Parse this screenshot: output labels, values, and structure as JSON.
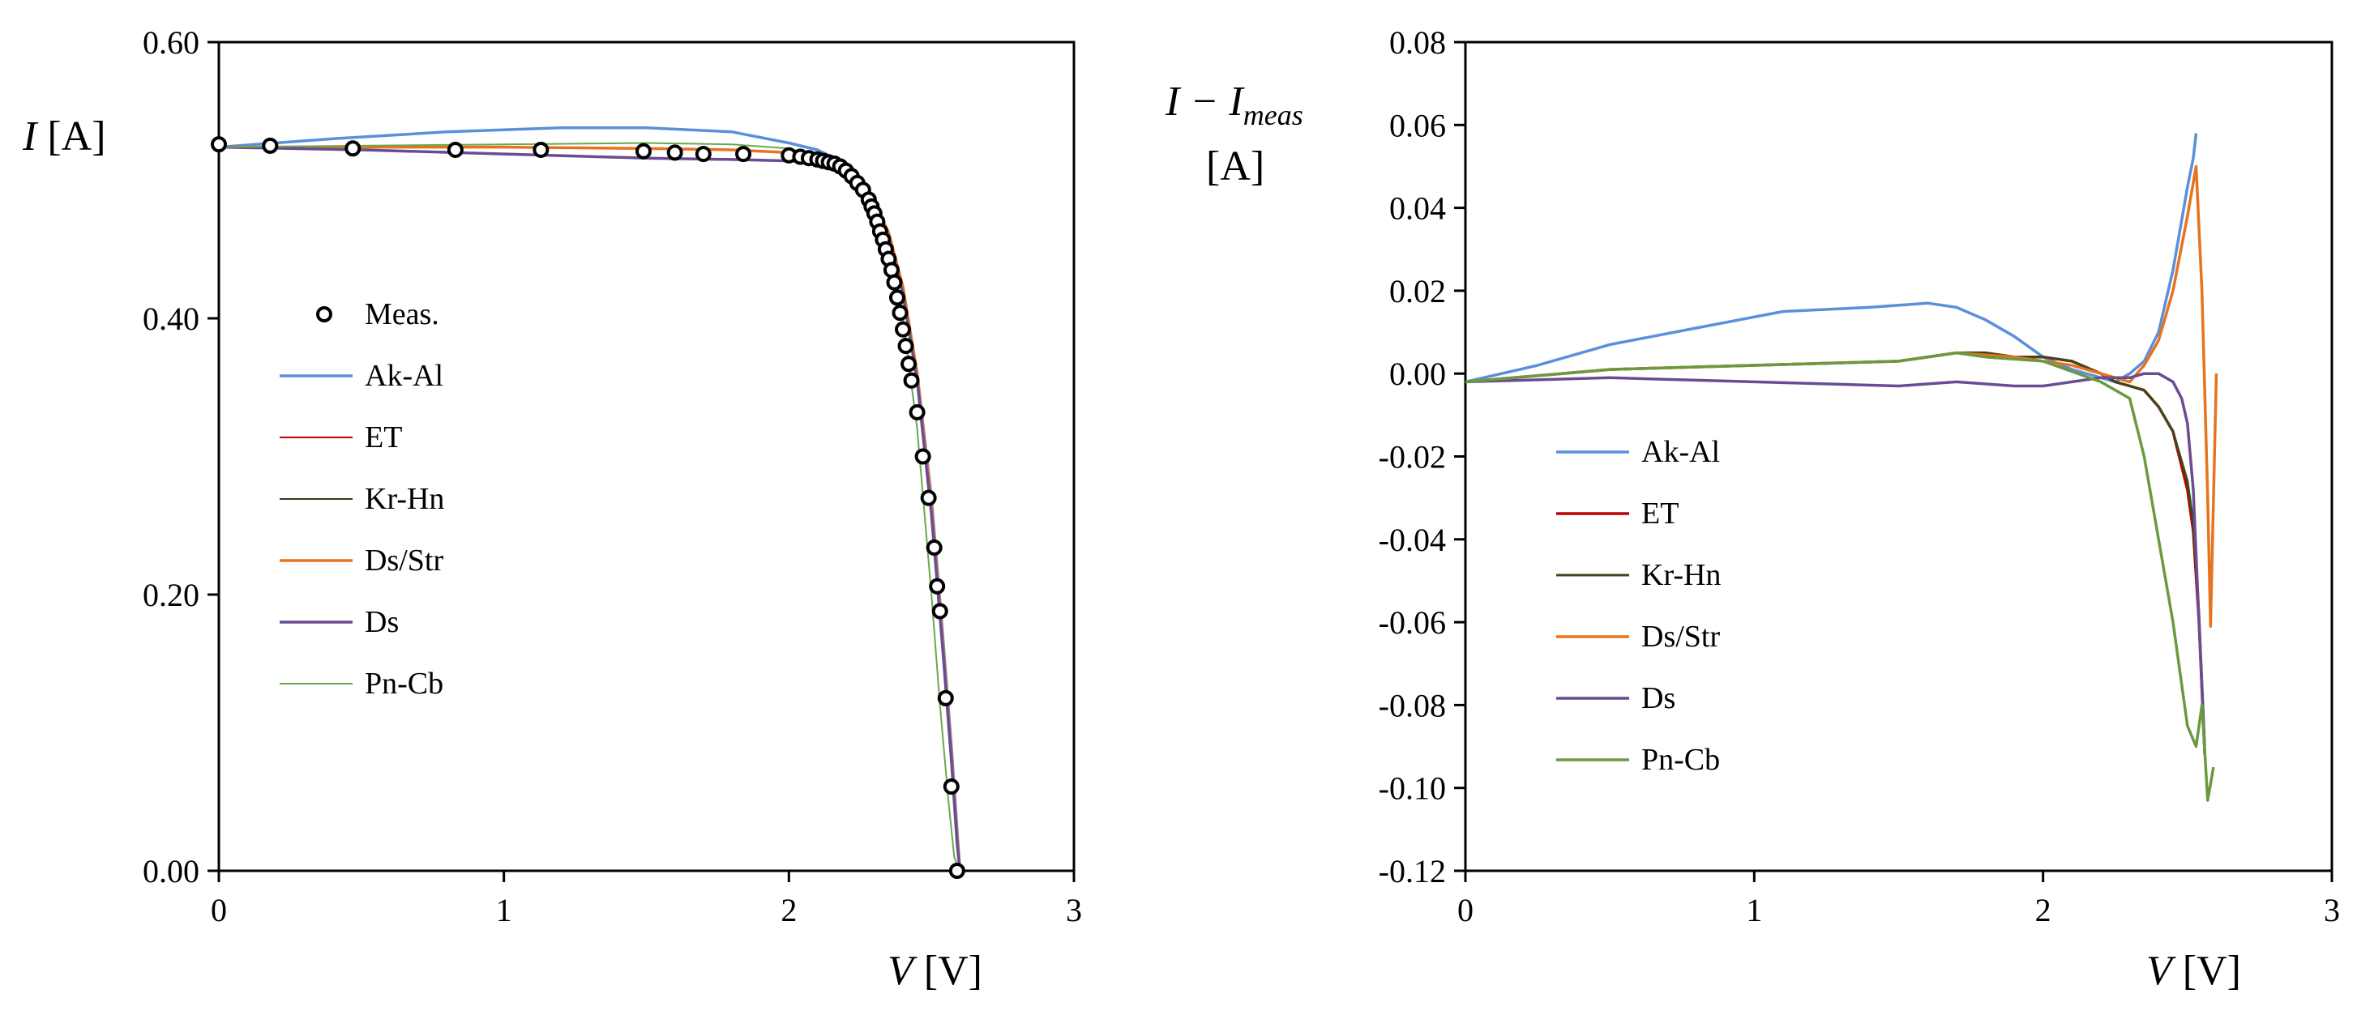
{
  "chart_data": [
    {
      "type": "line",
      "id": "iv",
      "xlabel": {
        "var": "V",
        "unit": "[V]"
      },
      "ylabel": {
        "var": "I",
        "unit": "[A]"
      },
      "xlim": [
        0,
        3
      ],
      "ylim": [
        0,
        0.6
      ],
      "xticks": [
        0,
        1,
        2,
        3
      ],
      "yticks": [
        0,
        0.2,
        0.4,
        0.6
      ],
      "ytick_decimals": 2,
      "grid": false,
      "legend_position": "left-middle",
      "markers": {
        "name": "Meas.",
        "color": "#000000",
        "x": [
          0,
          0.18,
          0.47,
          0.83,
          1.13,
          1.49,
          1.6,
          1.7,
          1.84,
          2.0,
          2.04,
          2.07,
          2.1,
          2.12,
          2.14,
          2.16,
          2.18,
          2.2,
          2.22,
          2.24,
          2.26,
          2.28,
          2.29,
          2.3,
          2.31,
          2.32,
          2.33,
          2.34,
          2.35,
          2.36,
          2.37,
          2.38,
          2.39,
          2.4,
          2.41,
          2.42,
          2.43,
          2.45,
          2.47,
          2.49,
          2.51,
          2.52,
          2.53,
          2.55,
          2.57,
          2.59
        ],
        "y": [
          0.526,
          0.525,
          0.523,
          0.522,
          0.522,
          0.521,
          0.52,
          0.519,
          0.519,
          0.518,
          0.517,
          0.516,
          0.515,
          0.514,
          0.513,
          0.512,
          0.51,
          0.507,
          0.503,
          0.498,
          0.493,
          0.486,
          0.481,
          0.476,
          0.47,
          0.463,
          0.457,
          0.45,
          0.443,
          0.435,
          0.426,
          0.415,
          0.404,
          0.392,
          0.38,
          0.367,
          0.355,
          0.332,
          0.3,
          0.27,
          0.234,
          0.206,
          0.188,
          0.125,
          0.061,
          0.0
        ]
      },
      "series": [
        {
          "name": "Ak-Al",
          "color": "#5b8fd9",
          "width": 3.5,
          "x": [
            0,
            0.4,
            0.8,
            1.2,
            1.5,
            1.8,
            2.0,
            2.1,
            2.2,
            2.3,
            2.35,
            2.4,
            2.45,
            2.5,
            2.54,
            2.57,
            2.59,
            2.6
          ],
          "y": [
            0.524,
            0.53,
            0.535,
            0.538,
            0.538,
            0.535,
            0.527,
            0.522,
            0.512,
            0.485,
            0.46,
            0.42,
            0.36,
            0.27,
            0.17,
            0.09,
            0.03,
            0.0
          ]
        },
        {
          "name": "ET",
          "color": "#c00000",
          "width": 2,
          "x": [
            0,
            0.5,
            1.0,
            1.5,
            1.8,
            2.0,
            2.1,
            2.2,
            2.3,
            2.35,
            2.4,
            2.45,
            2.5,
            2.54,
            2.57,
            2.59,
            2.6
          ],
          "y": [
            0.524,
            0.524,
            0.524,
            0.523,
            0.522,
            0.52,
            0.516,
            0.507,
            0.483,
            0.46,
            0.42,
            0.355,
            0.26,
            0.16,
            0.08,
            0.02,
            0.0
          ]
        },
        {
          "name": "Kr-Hn",
          "color": "#3a3a1a",
          "width": 2,
          "x": [
            0,
            0.5,
            1.0,
            1.5,
            1.8,
            2.0,
            2.1,
            2.2,
            2.3,
            2.35,
            2.4,
            2.45,
            2.5,
            2.54,
            2.57,
            2.59,
            2.6
          ],
          "y": [
            0.524,
            0.524,
            0.524,
            0.523,
            0.522,
            0.52,
            0.516,
            0.507,
            0.482,
            0.458,
            0.418,
            0.352,
            0.256,
            0.156,
            0.076,
            0.018,
            0.0
          ]
        },
        {
          "name": "Ds/Str",
          "color": "#e8731e",
          "width": 3.5,
          "x": [
            0,
            0.5,
            1.0,
            1.5,
            1.8,
            2.0,
            2.1,
            2.2,
            2.3,
            2.35,
            2.4,
            2.45,
            2.5,
            2.54,
            2.57,
            2.59,
            2.6
          ],
          "y": [
            0.524,
            0.524,
            0.524,
            0.523,
            0.522,
            0.52,
            0.516,
            0.507,
            0.484,
            0.462,
            0.423,
            0.36,
            0.265,
            0.165,
            0.085,
            0.025,
            0.0
          ]
        },
        {
          "name": "Ds",
          "color": "#6a4c93",
          "width": 3.5,
          "x": [
            0,
            0.5,
            1.0,
            1.5,
            1.8,
            2.0,
            2.1,
            2.2,
            2.3,
            2.35,
            2.4,
            2.45,
            2.5,
            2.54,
            2.57,
            2.59,
            2.6
          ],
          "y": [
            0.524,
            0.522,
            0.519,
            0.516,
            0.515,
            0.514,
            0.513,
            0.505,
            0.481,
            0.458,
            0.418,
            0.355,
            0.258,
            0.16,
            0.08,
            0.02,
            0.0
          ]
        },
        {
          "name": "Pn-Cb",
          "color": "#6aa84f",
          "width": 2,
          "x": [
            0,
            0.5,
            1.0,
            1.5,
            1.8,
            2.0,
            2.1,
            2.2,
            2.3,
            2.35,
            2.4,
            2.45,
            2.5,
            2.53,
            2.56,
            2.58,
            2.6
          ],
          "y": [
            0.524,
            0.525,
            0.526,
            0.527,
            0.526,
            0.523,
            0.518,
            0.506,
            0.474,
            0.446,
            0.4,
            0.32,
            0.2,
            0.12,
            0.05,
            0.01,
            0.0
          ]
        }
      ]
    },
    {
      "type": "line",
      "id": "residual",
      "xlabel": {
        "var": "V",
        "unit": "[V]"
      },
      "ylabel": {
        "var": "I − I",
        "sub": "meas",
        "unit": "[A]"
      },
      "xlim": [
        0,
        3
      ],
      "ylim": [
        -0.12,
        0.08
      ],
      "xticks": [
        0,
        1,
        2,
        3
      ],
      "yticks": [
        -0.12,
        -0.1,
        -0.08,
        -0.06,
        -0.04,
        -0.02,
        0.0,
        0.02,
        0.04,
        0.06,
        0.08
      ],
      "ytick_decimals": 2,
      "grid": false,
      "legend_position": "left-lower",
      "series": [
        {
          "name": "Ak-Al",
          "color": "#5b8fd9",
          "width": 3.5,
          "x": [
            0,
            0.25,
            0.5,
            0.8,
            1.1,
            1.4,
            1.6,
            1.7,
            1.8,
            1.9,
            2.0,
            2.1,
            2.2,
            2.25,
            2.3,
            2.35,
            2.4,
            2.45,
            2.5,
            2.52,
            2.53
          ],
          "y": [
            -0.002,
            0.002,
            0.007,
            0.011,
            0.015,
            0.016,
            0.017,
            0.016,
            0.013,
            0.009,
            0.004,
            0.001,
            -0.001,
            -0.002,
            0.0,
            0.003,
            0.01,
            0.025,
            0.045,
            0.052,
            0.058
          ]
        },
        {
          "name": "ET",
          "color": "#c00000",
          "width": 3.5,
          "x": [
            0,
            0.5,
            1.0,
            1.5,
            1.7,
            1.8,
            1.9,
            2.0,
            2.1,
            2.2,
            2.25,
            2.3,
            2.35,
            2.4,
            2.45,
            2.5,
            2.52,
            2.54,
            2.56
          ],
          "y": [
            -0.002,
            0.001,
            0.002,
            0.003,
            0.005,
            0.005,
            0.004,
            0.004,
            0.003,
            0.0,
            -0.002,
            -0.003,
            -0.004,
            -0.008,
            -0.014,
            -0.028,
            -0.038,
            -0.06,
            -0.092
          ]
        },
        {
          "name": "Kr-Hn",
          "color": "#3a4a1a",
          "width": 3,
          "x": [
            0,
            0.5,
            1.0,
            1.5,
            1.7,
            1.8,
            1.9,
            2.0,
            2.1,
            2.2,
            2.25,
            2.3,
            2.35,
            2.4,
            2.45,
            2.5,
            2.52,
            2.54,
            2.56
          ],
          "y": [
            -0.002,
            0.001,
            0.002,
            0.003,
            0.005,
            0.005,
            0.004,
            0.004,
            0.003,
            0.0,
            -0.002,
            -0.003,
            -0.004,
            -0.008,
            -0.014,
            -0.026,
            -0.036,
            -0.058,
            -0.09
          ]
        },
        {
          "name": "Ds/Str",
          "color": "#e8731e",
          "width": 3.5,
          "x": [
            0,
            0.5,
            1.0,
            1.5,
            1.7,
            1.9,
            2.1,
            2.2,
            2.3,
            2.35,
            2.4,
            2.45,
            2.5,
            2.53,
            2.55,
            2.57,
            2.58,
            2.6
          ],
          "y": [
            -0.002,
            0.001,
            0.002,
            0.003,
            0.005,
            0.004,
            0.002,
            0.0,
            -0.002,
            0.002,
            0.008,
            0.02,
            0.038,
            0.05,
            0.02,
            -0.03,
            -0.061,
            0.0
          ]
        },
        {
          "name": "Ds",
          "color": "#6a4c93",
          "width": 3.5,
          "x": [
            0,
            0.5,
            1.0,
            1.5,
            1.7,
            1.9,
            2.0,
            2.1,
            2.2,
            2.3,
            2.35,
            2.4,
            2.45,
            2.48,
            2.5,
            2.52,
            2.54,
            2.56
          ],
          "y": [
            -0.002,
            -0.001,
            -0.002,
            -0.003,
            -0.002,
            -0.003,
            -0.003,
            -0.002,
            -0.001,
            -0.001,
            0.0,
            0.0,
            -0.002,
            -0.006,
            -0.012,
            -0.028,
            -0.06,
            -0.092
          ]
        },
        {
          "name": "Pn-Cb",
          "color": "#6a9a3f",
          "width": 3.5,
          "x": [
            0,
            0.5,
            1.0,
            1.5,
            1.7,
            1.8,
            2.0,
            2.2,
            2.3,
            2.35,
            2.4,
            2.45,
            2.5,
            2.53,
            2.55,
            2.57,
            2.59
          ],
          "y": [
            -0.002,
            0.001,
            0.002,
            0.003,
            0.005,
            0.004,
            0.003,
            -0.002,
            -0.006,
            -0.02,
            -0.04,
            -0.06,
            -0.085,
            -0.09,
            -0.08,
            -0.103,
            -0.095
          ]
        }
      ]
    }
  ]
}
